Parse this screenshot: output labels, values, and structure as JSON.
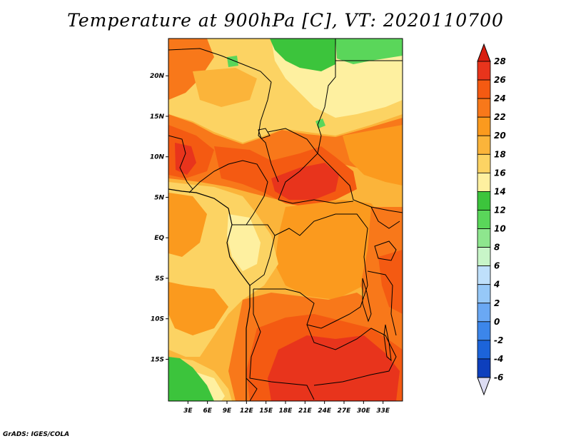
{
  "title": "Temperature at 900hPa [C], VT: 2020110700",
  "credit": "GrADS: IGES/COLA",
  "map": {
    "lat_ticks": [
      "20N",
      "15N",
      "10N",
      "5N",
      "EQ",
      "5S",
      "10S",
      "15S"
    ],
    "lat_values": [
      20,
      15,
      10,
      5,
      0,
      -5,
      -10,
      -15
    ],
    "lon_ticks": [
      "3E",
      "6E",
      "9E",
      "12E",
      "15E",
      "18E",
      "21E",
      "24E",
      "27E",
      "30E",
      "33E"
    ],
    "lon_values": [
      3,
      6,
      9,
      12,
      15,
      18,
      21,
      24,
      27,
      30,
      33
    ]
  },
  "colorbar": {
    "labels": [
      "28",
      "26",
      "24",
      "22",
      "20",
      "18",
      "16",
      "14",
      "12",
      "10",
      "8",
      "6",
      "4",
      "2",
      "0",
      "-2",
      "-4",
      "-6"
    ],
    "colors": [
      "#e8341c",
      "#f45a12",
      "#f8781a",
      "#fb9a1e",
      "#fbb43a",
      "#fcd363",
      "#fef0a0",
      "#3cc43c",
      "#5ad65a",
      "#8ee68e",
      "#c8f5c8",
      "#bfe0fb",
      "#96c8f8",
      "#6aa8f4",
      "#3c86ea",
      "#1c64da",
      "#0d3fbd",
      "#0a1a8a"
    ],
    "top_color": "#d81e10",
    "bottom_color": "#dcdcf2"
  }
}
